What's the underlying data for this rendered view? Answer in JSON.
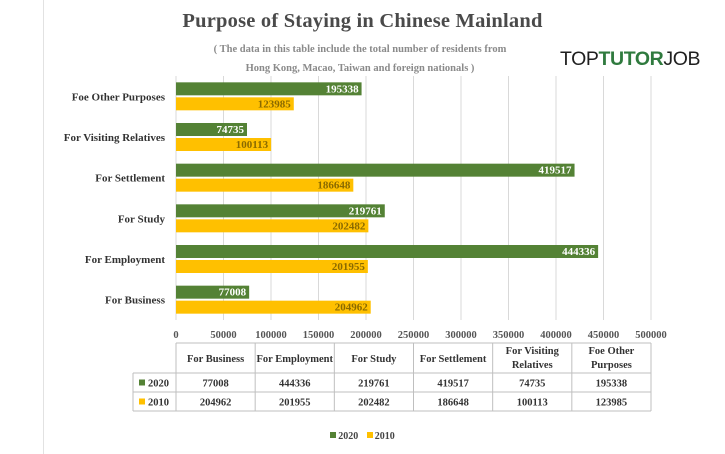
{
  "header": {
    "title": "Purpose of Staying in Chinese Mainland",
    "subtitle_line1": "( The data in this table include the total number of residents from",
    "subtitle_line2": "Hong Kong, Macao, Taiwan and foreign nationals )"
  },
  "brand": {
    "part1": "TOP",
    "part2": "TUTOR",
    "part3": "JOB"
  },
  "colors": {
    "s2020": "#548235",
    "s2010": "#ffc000",
    "grid": "#d9d9d9",
    "table_border": "#bfbfbf"
  },
  "chart_data": {
    "type": "bar",
    "orientation": "horizontal",
    "title": "Purpose of Staying in Chinese Mainland",
    "categories": [
      "For Business",
      "For Employment",
      "For Study",
      "For Settlement",
      "For Visiting Relatives",
      "Foe Other Purposes"
    ],
    "table_headers": [
      "For Business",
      "For Employment",
      "For Study",
      "For Settlement",
      "For Visiting\nRelatives",
      "Foe Other\nPurposes"
    ],
    "series": [
      {
        "name": "2020",
        "values": [
          77008,
          444336,
          219761,
          419517,
          74735,
          195338
        ]
      },
      {
        "name": "2010",
        "values": [
          204962,
          201955,
          202482,
          186648,
          100113,
          123985
        ]
      }
    ],
    "xlim": [
      0,
      500000
    ],
    "xticks": [
      0,
      50000,
      100000,
      150000,
      200000,
      250000,
      300000,
      350000,
      400000,
      450000,
      500000
    ],
    "grid": true,
    "data_labels": true,
    "data_table": true,
    "legend_position": "bottom"
  },
  "legend": {
    "s2020": "2020",
    "s2010": "2010"
  }
}
